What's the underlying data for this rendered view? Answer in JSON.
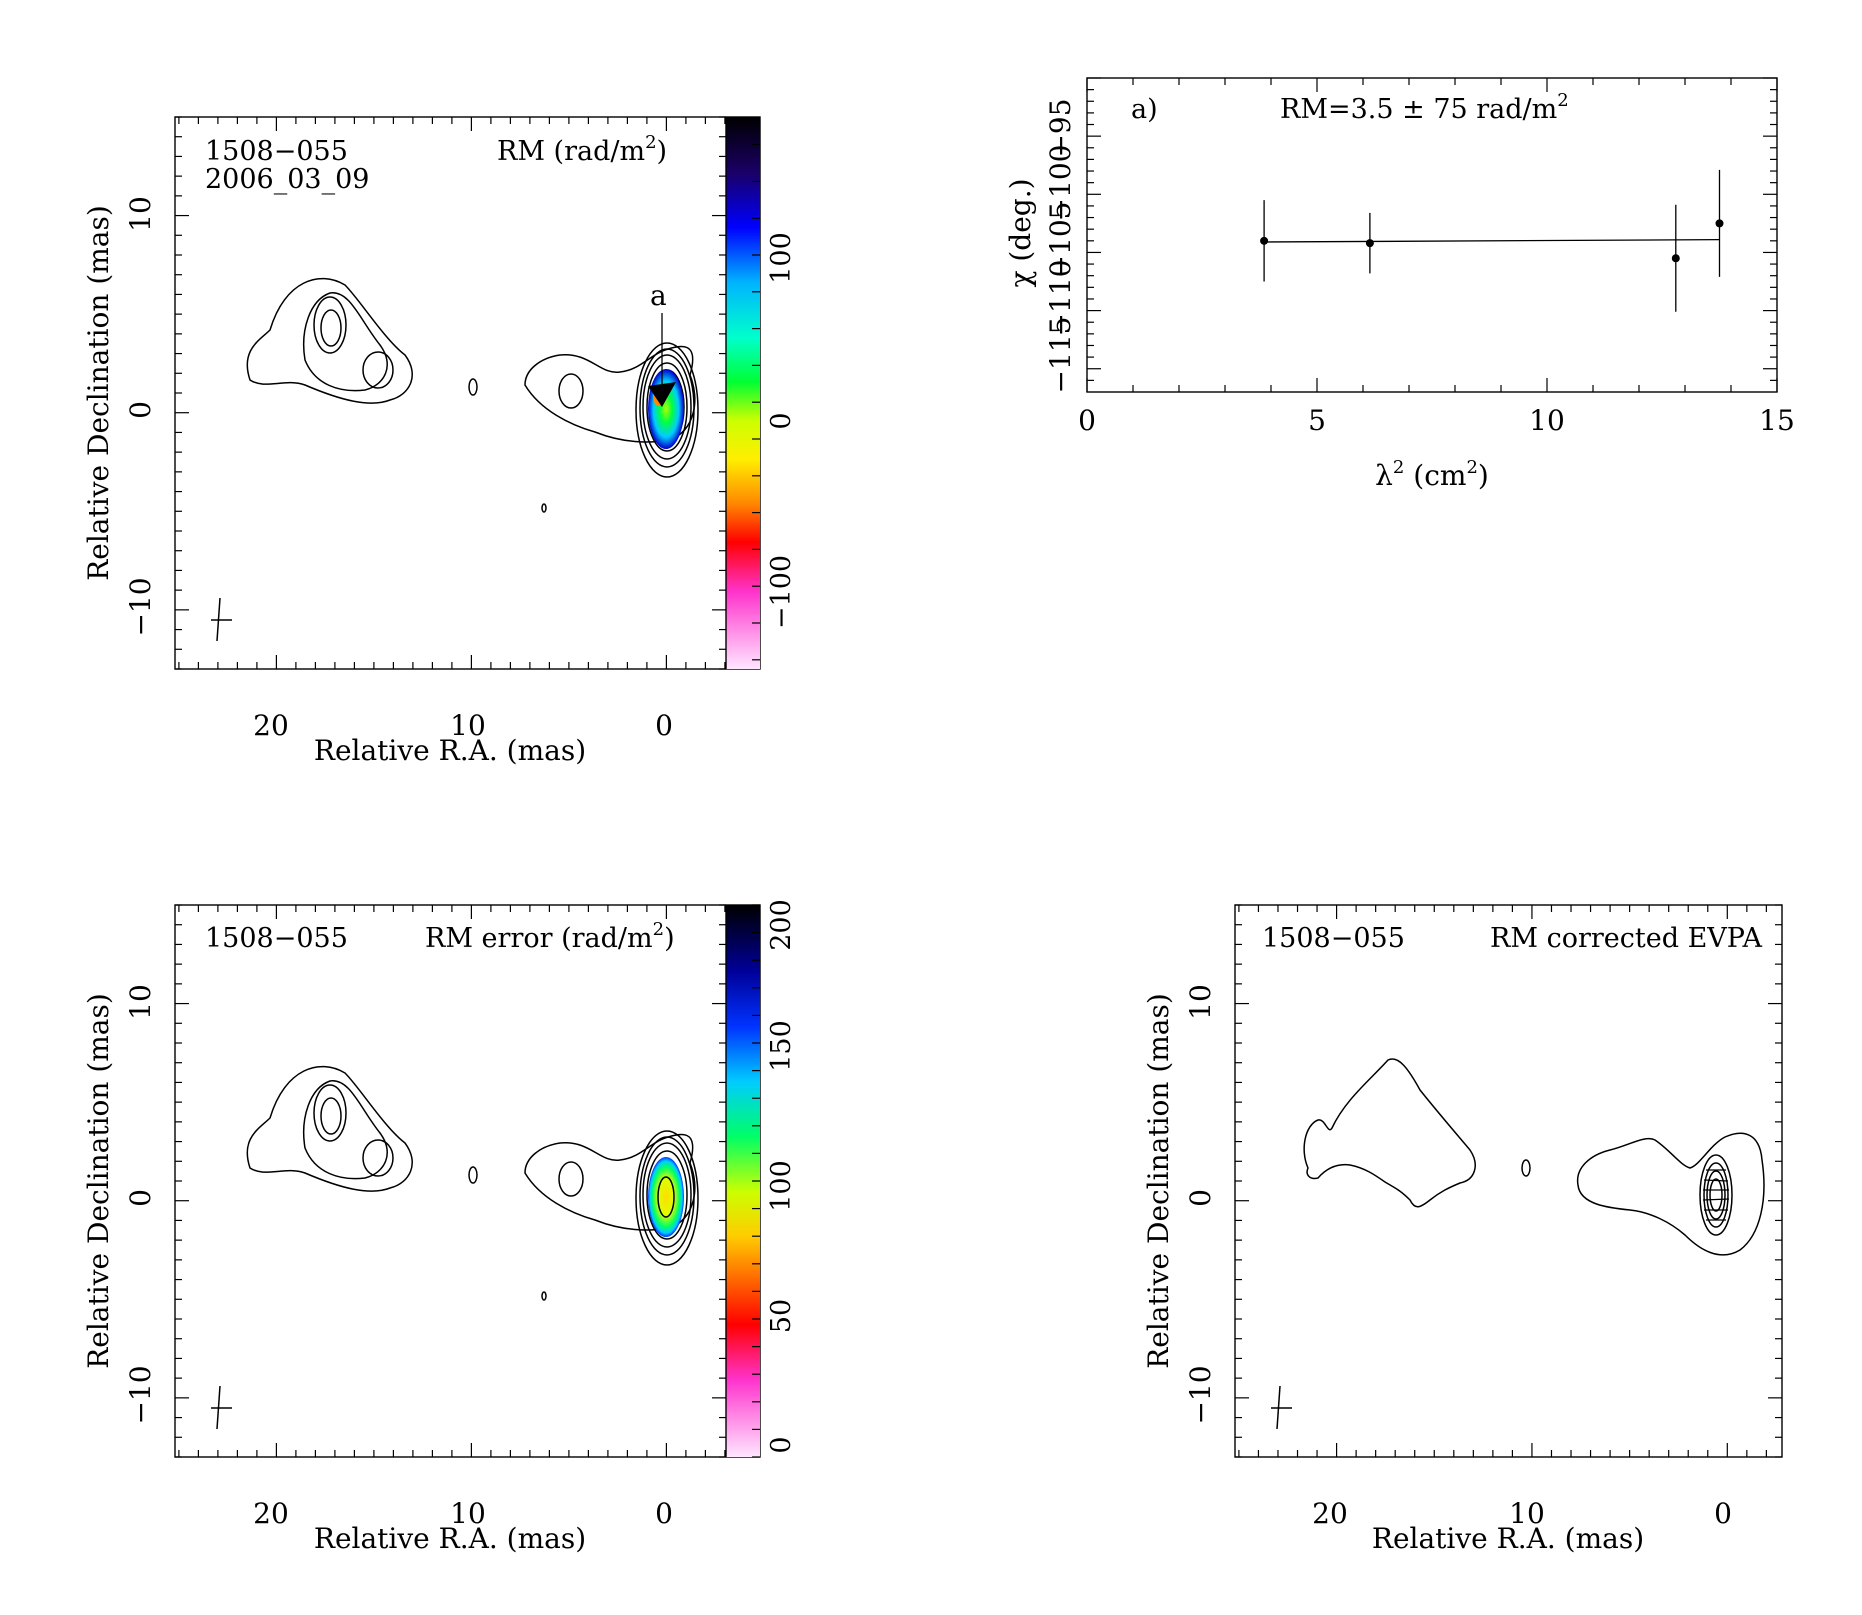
{
  "panels": {
    "rm_map": {
      "source": "1508−055",
      "epoch": "2006_03_09",
      "title_prefix": "RM (rad/m",
      "title_sup": "2",
      "title_suffix": ")",
      "xlabel": "Relative R.A. (mas)",
      "ylabel": "Relative Declination (mas)",
      "marker_label": "a",
      "xticks": [
        "20",
        "10",
        "0"
      ],
      "yticks": [
        "10",
        "0",
        "−10"
      ],
      "colorbar_ticks": [
        "100",
        "0",
        "−100"
      ]
    },
    "rm_fit": {
      "panel_label": "a)",
      "annotation": "RM=3.5 ± 75 rad/m",
      "annotation_sup": "2",
      "xlabel_prefix": "λ",
      "xlabel_sup": "2",
      "xlabel_suffix": " (cm",
      "xlabel_sup2": "2",
      "xlabel_end": ")",
      "ylabel": "χ (deg.)",
      "xticks": [
        "0",
        "5",
        "10",
        "15"
      ],
      "yticks": [
        "−115",
        "−110",
        "−105",
        "−100",
        "−95"
      ]
    },
    "rm_error_map": {
      "source": "1508−055",
      "title_prefix": "RM error (rad/m",
      "title_sup": "2",
      "title_suffix": ")",
      "xlabel": "Relative R.A. (mas)",
      "ylabel": "Relative Declination (mas)",
      "xticks": [
        "20",
        "10",
        "0"
      ],
      "yticks": [
        "10",
        "0",
        "−10"
      ],
      "colorbar_ticks": [
        "200",
        "150",
        "100",
        "50",
        "0"
      ]
    },
    "evpa_map": {
      "source": "1508−055",
      "title": "RM corrected EVPA",
      "xlabel": "Relative R.A. (mas)",
      "ylabel": "Relative Declination (mas)",
      "xticks": [
        "20",
        "10",
        "0"
      ],
      "yticks": [
        "10",
        "0",
        "−10"
      ]
    }
  },
  "chart_data": [
    {
      "type": "heatmap",
      "title": "RM (rad/m2)",
      "xlabel": "Relative R.A. (mas)",
      "ylabel": "Relative Declination (mas)",
      "xlim": [
        25,
        -4.8
      ],
      "ylim": [
        -13,
        15
      ],
      "colorbar_range": [
        -145,
        155
      ],
      "colorbar_ticks": [
        100,
        0,
        -100
      ]
    },
    {
      "type": "scatter",
      "title": "RM=3.5 ± 75 rad/m2",
      "xlabel": "λ2 (cm2)",
      "ylabel": "χ (deg.)",
      "xlim": [
        0,
        15
      ],
      "ylim": [
        -117,
        -90
      ],
      "points": [
        {
          "x": 3.85,
          "y": -104.0,
          "yerr": 3.5
        },
        {
          "x": 6.15,
          "y": -104.2,
          "yerr": 2.6
        },
        {
          "x": 12.8,
          "y": -105.5,
          "yerr": 4.6
        },
        {
          "x": 13.75,
          "y": -102.5,
          "yerr": 4.6
        }
      ],
      "fit_line": {
        "x": [
          3.85,
          13.75
        ],
        "y": [
          -104.1,
          -103.9
        ]
      }
    },
    {
      "type": "heatmap",
      "title": "RM error (rad/m2)",
      "xlabel": "Relative R.A. (mas)",
      "ylabel": "Relative Declination (mas)",
      "xlim": [
        25,
        -4.8
      ],
      "ylim": [
        -13,
        15
      ],
      "colorbar_range": [
        0,
        200
      ],
      "colorbar_ticks": [
        200,
        150,
        100,
        50,
        0
      ]
    },
    {
      "type": "heatmap",
      "title": "RM corrected EVPA",
      "xlabel": "Relative R.A. (mas)",
      "ylabel": "Relative Declination (mas)",
      "xlim": [
        25,
        -3
      ]
    }
  ]
}
